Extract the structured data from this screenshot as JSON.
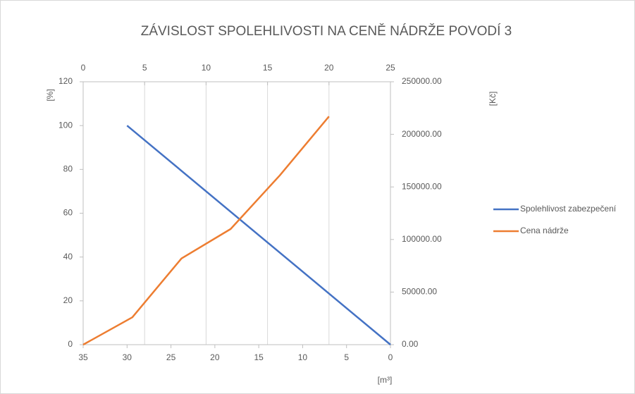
{
  "chart_data": {
    "type": "line",
    "title": "ZÁVISLOST SPOLEHLIVOSTI NA CENĚ NÁDRŽE POVODÍ 3",
    "ylabel": "[%]",
    "y2label": "[Kč]",
    "xlabel": "[m³]",
    "xlim": [
      35,
      0
    ],
    "xticks": [
      35,
      30,
      25,
      20,
      15,
      10,
      5,
      0
    ],
    "x2lim": [
      0,
      25
    ],
    "x2ticks": [
      0,
      5,
      10,
      15,
      20,
      25
    ],
    "ylim": [
      0,
      120
    ],
    "yticks": [
      0,
      20,
      40,
      60,
      80,
      100,
      120
    ],
    "y2lim": [
      0,
      250000
    ],
    "y2ticks": [
      {
        "value": 0,
        "label": "0.00"
      },
      {
        "value": 50000,
        "label": "50000.00"
      },
      {
        "value": 100000,
        "label": "100000.00"
      },
      {
        "value": 150000,
        "label": "150000.00"
      },
      {
        "value": 200000,
        "label": "200000.00"
      },
      {
        "value": 250000,
        "label": "250000.00"
      }
    ],
    "grid": true,
    "legend": "right",
    "series": [
      {
        "name": "Spolehlivost zabezpečení",
        "color": "#4472c4",
        "xaxis": "x",
        "x": [
          30,
          0
        ],
        "values": [
          100,
          0
        ]
      },
      {
        "name": "Cena nádrže",
        "color": "#ed7d31",
        "axis": "y2",
        "xaxis": "x2",
        "x": [
          0,
          4,
          8,
          12,
          16,
          20
        ],
        "values": [
          0,
          26000,
          82000,
          110000,
          161000,
          217000
        ]
      }
    ]
  }
}
